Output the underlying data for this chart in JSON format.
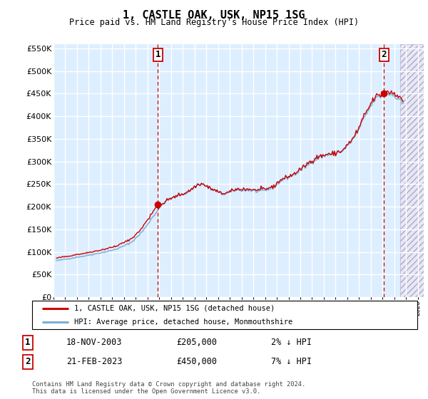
{
  "title": "1, CASTLE OAK, USK, NP15 1SG",
  "subtitle": "Price paid vs. HM Land Registry's House Price Index (HPI)",
  "ylim": [
    0,
    560000
  ],
  "yticks": [
    0,
    50000,
    100000,
    150000,
    200000,
    250000,
    300000,
    350000,
    400000,
    450000,
    500000,
    550000
  ],
  "xlim_start": 1995.0,
  "xlim_end": 2026.5,
  "sale1_date": "18-NOV-2003",
  "sale1_x": 2003.88,
  "sale1_price": 205000,
  "sale1_label": "2% ↓ HPI",
  "sale2_date": "21-FEB-2023",
  "sale2_x": 2023.13,
  "sale2_price": 450000,
  "sale2_label": "7% ↓ HPI",
  "line_color_property": "#cc0000",
  "line_color_hpi": "#7aaed6",
  "bg_color_main": "#ddeeff",
  "bg_color_future": "#e8e8f4",
  "grid_color": "#ffffff",
  "legend_label_property": "1, CASTLE OAK, USK, NP15 1SG (detached house)",
  "legend_label_hpi": "HPI: Average price, detached house, Monmouthshire",
  "footer": "Contains HM Land Registry data © Crown copyright and database right 2024.\nThis data is licensed under the Open Government Licence v3.0.",
  "base_hpi_anchors_year": [
    1995.5,
    1996.5,
    1997.5,
    1998.5,
    1999.5,
    2000.5,
    2001.5,
    2002.5,
    2003.5,
    2004.5,
    2005.5,
    2006.5,
    2007.5,
    2008.5,
    2009.5,
    2010.5,
    2011.5,
    2012.5,
    2013.5,
    2014.5,
    2015.5,
    2016.5,
    2017.5,
    2018.5,
    2019.5,
    2020.5,
    2021.5,
    2022.5,
    2023.5,
    2024.5
  ],
  "base_hpi_anchors_val": [
    82000,
    86000,
    90000,
    95000,
    100000,
    107000,
    118000,
    142000,
    178000,
    210000,
    222000,
    232000,
    248000,
    237000,
    228000,
    238000,
    238000,
    235000,
    242000,
    260000,
    272000,
    290000,
    306000,
    313000,
    323000,
    348000,
    398000,
    440000,
    448000,
    435000
  ]
}
